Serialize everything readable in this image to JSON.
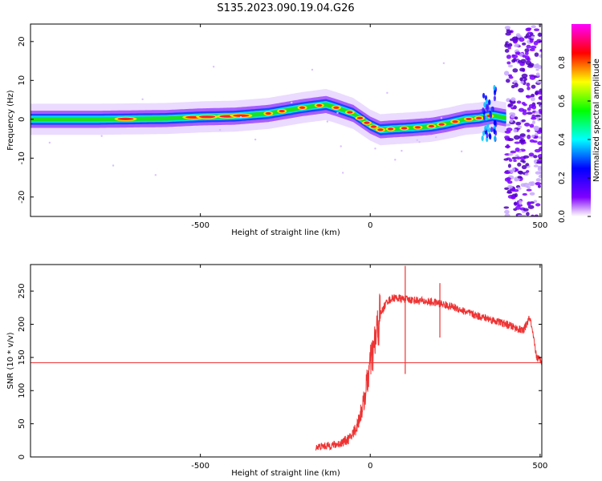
{
  "title": "S135.2023.090.19.04.G26",
  "chart_data": [
    {
      "type": "heatmap",
      "xlabel": "Height of straight line (km)",
      "ylabel": "Frequency (Hz)",
      "xlim": [
        -1000,
        505
      ],
      "ylim": [
        -25,
        24.5
      ],
      "xticks": [
        -500,
        0,
        500
      ],
      "yticks": [
        -20,
        -10,
        0,
        10,
        20
      ],
      "colorbar": {
        "label": "Normalized spectral amplitude",
        "range": [
          0,
          1
        ],
        "ticks": [
          0.0,
          0.2,
          0.4,
          0.6,
          0.8
        ],
        "colormap": [
          "#ffffff",
          "#8000ff",
          "#0000ff",
          "#00ffff",
          "#00ff00",
          "#ffff00",
          "#ff0000",
          "#ff00ff"
        ]
      },
      "ridge": {
        "x": [
          -1000,
          -800,
          -600,
          -500,
          -400,
          -300,
          -200,
          -130,
          -100,
          -50,
          0,
          30,
          60,
          120,
          180,
          230,
          280,
          320,
          360,
          420,
          505
        ],
        "y": [
          0,
          0,
          0.2,
          0.6,
          0.8,
          1.5,
          3,
          3.8,
          3.0,
          1.5,
          -1.5,
          -2.7,
          -2.5,
          -2.2,
          -1.8,
          -1.0,
          0.0,
          0.3,
          1.0,
          0,
          0
        ]
      },
      "noise_region": {
        "x_start": 400,
        "x_end": 505
      }
    },
    {
      "type": "line",
      "xlabel": "Height of straight line (km)",
      "ylabel": "SNR (10 * v/v)",
      "xlim": [
        -1000,
        505
      ],
      "ylim": [
        0,
        290
      ],
      "xticks": [
        -500,
        0,
        500
      ],
      "yticks": [
        0,
        50,
        100,
        150,
        200,
        250
      ],
      "series": [
        {
          "color": "#ee3333",
          "x": [
            -160,
            -120,
            -90,
            -60,
            -40,
            -20,
            -10,
            0,
            10,
            20,
            30,
            50,
            70,
            100,
            150,
            200,
            250,
            300,
            350,
            400,
            450,
            470,
            490,
            505
          ],
          "y": [
            15,
            17,
            20,
            28,
            45,
            80,
            110,
            140,
            160,
            190,
            215,
            235,
            240,
            238,
            235,
            232,
            225,
            215,
            208,
            200,
            190,
            210,
            150,
            145
          ]
        }
      ],
      "hline": {
        "y": 142,
        "color": "#ee3333"
      },
      "spikes": [
        {
          "x": 103,
          "ymin": 125,
          "ymax": 288
        },
        {
          "x": 205,
          "ymin": 180,
          "ymax": 262
        }
      ]
    }
  ]
}
